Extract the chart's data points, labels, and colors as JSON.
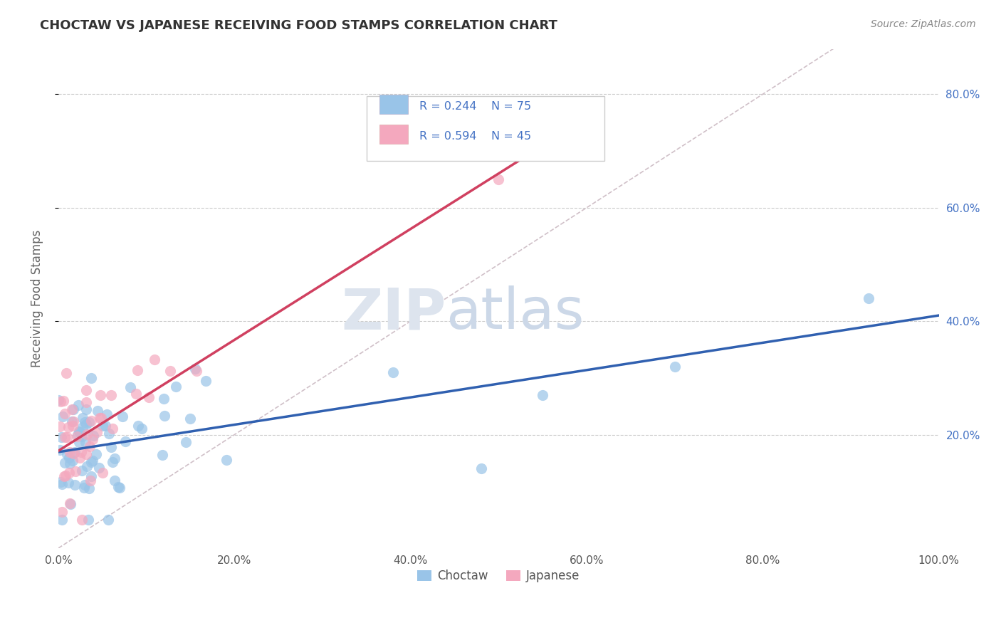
{
  "title": "CHOCTAW VS JAPANESE RECEIVING FOOD STAMPS CORRELATION CHART",
  "source": "Source: ZipAtlas.com",
  "ylabel": "Receiving Food Stamps",
  "xlim": [
    0,
    1
  ],
  "ylim": [
    0.0,
    0.88
  ],
  "xticks": [
    0.0,
    0.2,
    0.4,
    0.6,
    0.8,
    1.0
  ],
  "xtick_labels": [
    "0.0%",
    "20.0%",
    "40.0%",
    "60.0%",
    "80.0%",
    "100.0%"
  ],
  "ytick_positions": [
    0.2,
    0.4,
    0.6,
    0.8
  ],
  "ytick_labels": [
    "20.0%",
    "40.0%",
    "60.0%",
    "80.0%"
  ],
  "choctaw_color": "#99c4e8",
  "japanese_color": "#f4a8be",
  "choctaw_line_color": "#3060b0",
  "japanese_line_color": "#d04060",
  "diag_color": "#d0c0c8",
  "background_color": "#ffffff",
  "grid_color": "#cccccc",
  "right_axis_color": "#4472c4",
  "title_color": "#333333",
  "source_color": "#888888",
  "watermark_zip_color": "#dde4ee",
  "watermark_atlas_color": "#ccd8e8",
  "legend_border_color": "#cccccc",
  "legend_text_color": "#4472c4",
  "choctaw_R": 0.244,
  "choctaw_N": 75,
  "japanese_R": 0.594,
  "japanese_N": 45
}
